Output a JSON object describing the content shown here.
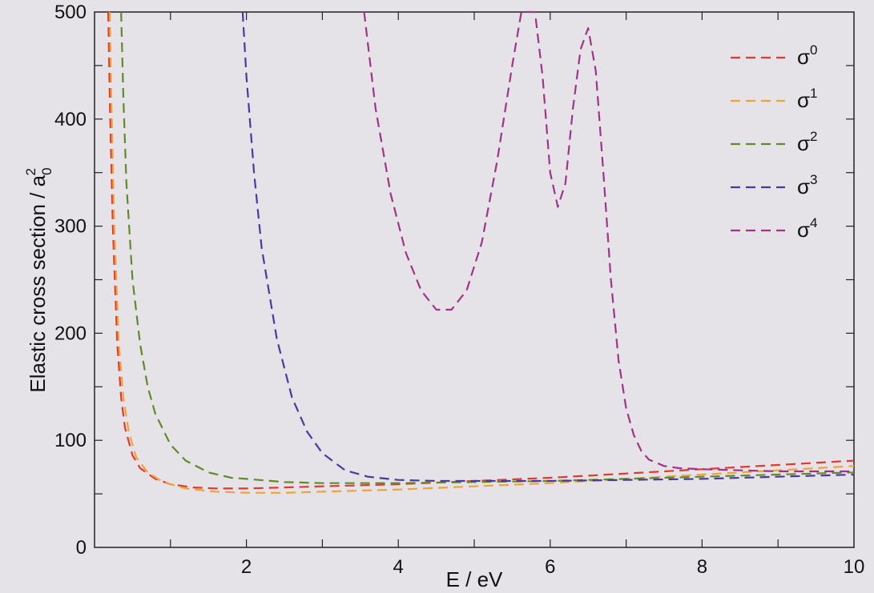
{
  "chart_data": {
    "type": "line",
    "xlabel": "E / eV",
    "ylabel": "Elastic cross section / a",
    "ylabel_sub": "0",
    "ylabel_sup": "2",
    "xlim": [
      0,
      10
    ],
    "ylim": [
      0,
      500
    ],
    "xticks": [
      2,
      4,
      6,
      8,
      10
    ],
    "yticks": [
      0,
      100,
      200,
      300,
      400,
      500
    ],
    "xtick_labels": [
      "2",
      "4",
      "6",
      "8",
      "10"
    ],
    "ytick_labels": [
      "0",
      "100",
      "200",
      "300",
      "400",
      "500"
    ],
    "grid": false,
    "legend_position": "top-right",
    "series": [
      {
        "name": "σ",
        "sup": "0",
        "color": "#e03a2e",
        "x": [
          0.18,
          0.2,
          0.24,
          0.3,
          0.35,
          0.4,
          0.5,
          0.6,
          0.8,
          1.0,
          1.3,
          1.6,
          2.0,
          2.5,
          3.0,
          4.0,
          5.0,
          6.0,
          7.0,
          8.0,
          9.0,
          10.0
        ],
        "y": [
          500,
          420,
          300,
          190,
          140,
          112,
          86,
          74,
          64,
          59,
          56,
          55,
          55,
          56,
          57,
          59,
          62,
          65,
          69,
          73,
          77,
          81
        ]
      },
      {
        "name": "σ",
        "sup": "1",
        "color": "#f0a23a",
        "x": [
          0.2,
          0.22,
          0.26,
          0.32,
          0.38,
          0.45,
          0.55,
          0.7,
          0.9,
          1.2,
          1.6,
          2.0,
          2.5,
          3.0,
          4.0,
          5.0,
          6.0,
          7.0,
          8.0,
          9.0,
          10.0
        ],
        "y": [
          500,
          420,
          300,
          190,
          140,
          108,
          84,
          70,
          61,
          55,
          52,
          51,
          51,
          52,
          54,
          57,
          60,
          64,
          68,
          72,
          76
        ]
      },
      {
        "name": "σ",
        "sup": "2",
        "color": "#5e8c2a",
        "x": [
          0.35,
          0.38,
          0.42,
          0.5,
          0.6,
          0.7,
          0.8,
          1.0,
          1.2,
          1.5,
          1.8,
          2.0,
          2.5,
          3.0,
          4.0,
          5.0,
          6.0,
          7.0,
          8.0,
          9.0,
          10.0
        ],
        "y": [
          500,
          420,
          340,
          250,
          190,
          150,
          125,
          96,
          81,
          70,
          65,
          64,
          61,
          60,
          60,
          61,
          62,
          64,
          66,
          68,
          70
        ]
      },
      {
        "name": "σ",
        "sup": "3",
        "color": "#4a3a9e",
        "x": [
          1.95,
          2.0,
          2.1,
          2.2,
          2.4,
          2.6,
          2.8,
          3.0,
          3.3,
          3.6,
          4.0,
          4.5,
          5.0,
          6.0,
          7.0,
          8.0,
          9.0,
          10.0
        ],
        "y": [
          500,
          440,
          350,
          280,
          195,
          140,
          108,
          88,
          72,
          66,
          63,
          62,
          62,
          62,
          63,
          64,
          66,
          68
        ]
      },
      {
        "name": "σ",
        "sup": "4",
        "color": "#a0338a",
        "x": [
          3.55,
          3.7,
          3.9,
          4.1,
          4.3,
          4.5,
          4.7,
          4.9,
          5.1,
          5.3,
          5.5,
          5.62,
          5.7,
          5.8,
          5.9,
          6.0,
          6.1,
          6.2,
          6.3,
          6.4,
          6.5,
          6.6,
          6.7,
          6.8,
          6.9,
          7.0,
          7.1,
          7.2,
          7.3,
          7.5,
          7.7,
          8.0,
          8.5,
          9.0,
          10.0
        ],
        "y": [
          500,
          410,
          330,
          275,
          240,
          222,
          222,
          240,
          285,
          360,
          450,
          500,
          500,
          500,
          440,
          350,
          318,
          340,
          410,
          465,
          485,
          445,
          350,
          250,
          175,
          130,
          105,
          90,
          82,
          76,
          74,
          73,
          72,
          71,
          71
        ]
      }
    ]
  }
}
